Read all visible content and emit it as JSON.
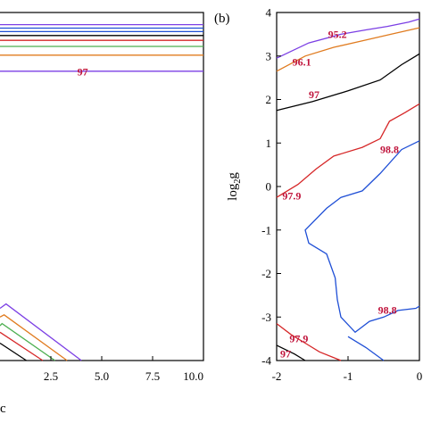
{
  "chart_data": [
    {
      "type": "line",
      "panel": "a",
      "xlabel": "c",
      "xlim": [
        0,
        10
      ],
      "x_ticks": [
        "2.5",
        "5.0",
        "7.5",
        "10.0"
      ],
      "x_tick_values": [
        2.5,
        5.0,
        7.5,
        10.0
      ],
      "ylim": [
        -4,
        4
      ],
      "series": [
        {
          "color": "#7b3fe4",
          "x": [
            0,
            10
          ],
          "y": [
            2.65,
            2.65
          ]
        },
        {
          "color": "#e07b1f",
          "x": [
            0,
            10
          ],
          "y": [
            3.02,
            3.02
          ]
        },
        {
          "color": "#4caf50",
          "x": [
            0,
            10
          ],
          "y": [
            3.22,
            3.22
          ]
        },
        {
          "color": "#d62728",
          "x": [
            0,
            10
          ],
          "y": [
            3.36,
            3.36
          ]
        },
        {
          "color": "#000000",
          "x": [
            0,
            10
          ],
          "y": [
            3.47,
            3.47
          ]
        },
        {
          "color": "#1f4fd6",
          "x": [
            0,
            10
          ],
          "y": [
            3.56,
            3.56
          ]
        },
        {
          "color": "#1f4fd6",
          "x": [
            0,
            10
          ],
          "y": [
            3.64,
            3.64
          ]
        },
        {
          "color": "#7b3fe4",
          "x": [
            0,
            10
          ],
          "y": [
            3.72,
            3.72
          ]
        },
        {
          "color": "#7b3fe4",
          "x": [
            0,
            0.3,
            4.0
          ],
          "y": [
            -2.8,
            -2.7,
            -4.0
          ]
        },
        {
          "color": "#e07b1f",
          "x": [
            0,
            0.2,
            3.3
          ],
          "y": [
            -3.0,
            -2.95,
            -4.0
          ]
        },
        {
          "color": "#4caf50",
          "x": [
            0,
            0.1,
            2.7
          ],
          "y": [
            -3.2,
            -3.15,
            -4.0
          ]
        },
        {
          "color": "#d62728",
          "x": [
            0,
            2.1
          ],
          "y": [
            -3.35,
            -4.0
          ]
        },
        {
          "color": "#000000",
          "x": [
            0,
            1.3
          ],
          "y": [
            -3.6,
            -4.0
          ]
        }
      ],
      "annotations": [
        {
          "text": "97",
          "x": 3.8,
          "y": 2.55
        }
      ]
    },
    {
      "type": "line",
      "panel": "b",
      "panel_label": "(b)",
      "ylabel": "log",
      "ylabel_sub": "2",
      "ylabel_tail": "g",
      "xlim": [
        -2,
        0
      ],
      "ylim": [
        -4,
        4
      ],
      "x_ticks": [
        "-2",
        "-1",
        "0"
      ],
      "x_tick_values": [
        -2,
        -1,
        0
      ],
      "y_ticks": [
        "-4",
        "-3",
        "-2",
        "-1",
        "0",
        "1",
        "2",
        "3",
        "4"
      ],
      "y_tick_values": [
        -4,
        -3,
        -2,
        -1,
        0,
        1,
        2,
        3,
        4
      ],
      "series": [
        {
          "color": "#7b3fe4",
          "x": [
            -2,
            -1.55,
            -1.1,
            -0.75,
            -0.45,
            -0.15,
            0
          ],
          "y": [
            2.95,
            3.3,
            3.5,
            3.6,
            3.68,
            3.78,
            3.85
          ]
        },
        {
          "color": "#e07b1f",
          "x": [
            -2,
            -1.6,
            -1.2,
            -0.8,
            -0.4,
            0
          ],
          "y": [
            2.65,
            3.0,
            3.2,
            3.35,
            3.5,
            3.65
          ]
        },
        {
          "color": "#000000",
          "x": [
            -2,
            -1.5,
            -1.0,
            -0.55,
            -0.25,
            -0.05,
            0
          ],
          "y": [
            1.75,
            1.95,
            2.2,
            2.45,
            2.8,
            3.0,
            3.05
          ]
        },
        {
          "color": "#d62728",
          "x": [
            -2,
            -1.7,
            -1.45,
            -1.2,
            -0.8,
            -0.55,
            -0.42,
            -0.2,
            -0.05,
            0
          ],
          "y": [
            -0.25,
            0.05,
            0.4,
            0.7,
            0.9,
            1.1,
            1.5,
            1.7,
            1.85,
            1.9
          ]
        },
        {
          "color": "#1f4fd6",
          "x": [
            0,
            -0.25,
            -0.55,
            -0.8,
            -1.1,
            -1.3,
            -1.6,
            -1.55,
            -1.3,
            -1.18,
            -1.15,
            -1.1,
            -0.9,
            -0.7,
            -0.5,
            -0.3,
            -0.05,
            0
          ],
          "y": [
            1.05,
            0.85,
            0.3,
            -0.1,
            -0.25,
            -0.5,
            -1.0,
            -1.3,
            -1.55,
            -2.1,
            -2.6,
            -3.0,
            -3.35,
            -3.1,
            -3.0,
            -2.85,
            -2.8,
            -2.75
          ]
        },
        {
          "color": "#d62728",
          "x": [
            -2,
            -1.8,
            -1.6,
            -1.4,
            -1.1
          ],
          "y": [
            -3.15,
            -3.4,
            -3.6,
            -3.8,
            -4.0
          ]
        },
        {
          "color": "#1f4fd6",
          "x": [
            -1.0,
            -0.75,
            -0.5
          ],
          "y": [
            -3.45,
            -3.7,
            -4.0
          ]
        },
        {
          "color": "#000000",
          "x": [
            -2,
            -1.75,
            -1.6
          ],
          "y": [
            -3.65,
            -3.85,
            -4.0
          ]
        }
      ],
      "annotations": [
        {
          "text": "95.2",
          "x": -1.28,
          "y": 3.42
        },
        {
          "text": "96.1",
          "x": -1.78,
          "y": 2.78
        },
        {
          "text": "97",
          "x": -1.55,
          "y": 2.03
        },
        {
          "text": "98.8",
          "x": -0.55,
          "y": 0.77
        },
        {
          "text": "97.9",
          "x": -1.92,
          "y": -0.3
        },
        {
          "text": "98.8",
          "x": -0.58,
          "y": -2.92
        },
        {
          "text": "97.9",
          "x": -1.82,
          "y": -3.58
        },
        {
          "text": "97",
          "x": -1.95,
          "y": -3.93
        }
      ]
    }
  ]
}
